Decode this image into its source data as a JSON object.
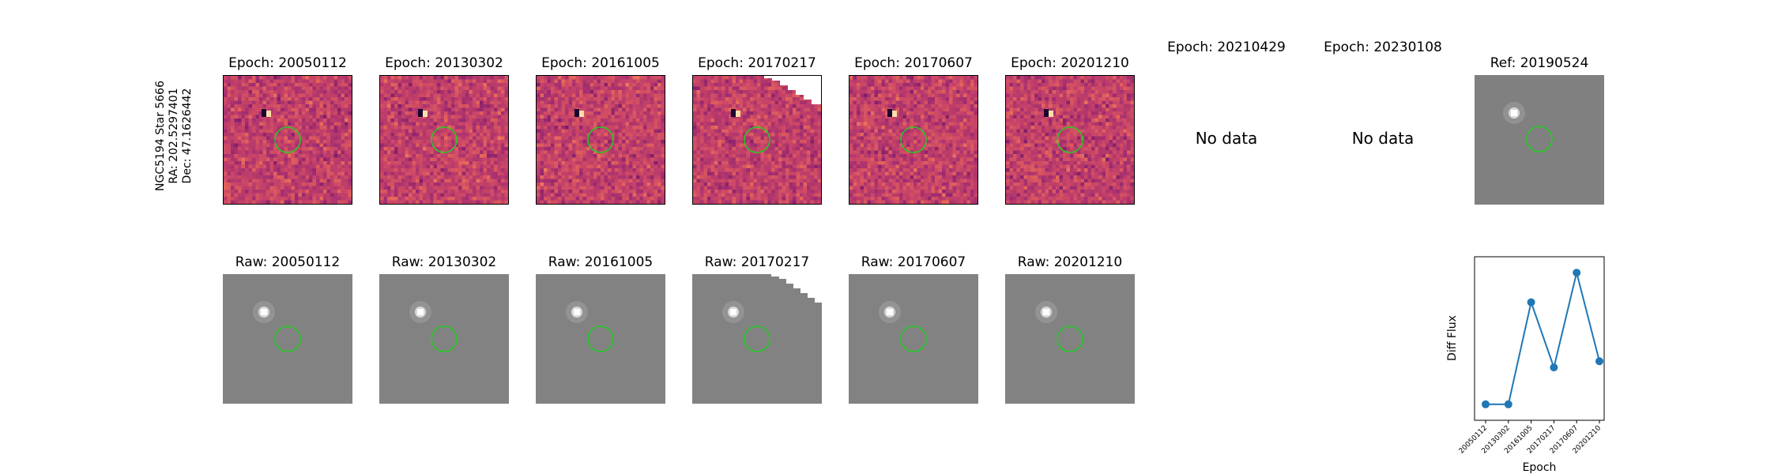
{
  "target": {
    "name": "NGC5194 Star 5666",
    "ra_label": "RA: 202.5297401",
    "dec_label": "Dec: 47.1626442"
  },
  "diff_row": [
    {
      "title": "Epoch: 20050112",
      "has_data": true,
      "clipped": false
    },
    {
      "title": "Epoch: 20130302",
      "has_data": true,
      "clipped": false
    },
    {
      "title": "Epoch: 20161005",
      "has_data": true,
      "clipped": false
    },
    {
      "title": "Epoch: 20170217",
      "has_data": true,
      "clipped": true
    },
    {
      "title": "Epoch: 20170607",
      "has_data": true,
      "clipped": false
    },
    {
      "title": "Epoch: 20201210",
      "has_data": true,
      "clipped": false
    },
    {
      "title": "Epoch: 20210429",
      "has_data": false,
      "message": "No data"
    },
    {
      "title": "Epoch: 20230108",
      "has_data": false,
      "message": "No data"
    }
  ],
  "reference": {
    "title": "Ref: 20190524"
  },
  "raw_row": [
    {
      "title": "Raw: 20050112",
      "clipped": false
    },
    {
      "title": "Raw: 20130302",
      "clipped": false
    },
    {
      "title": "Raw: 20161005",
      "clipped": false
    },
    {
      "title": "Raw: 20170217",
      "clipped": true
    },
    {
      "title": "Raw: 20170607",
      "clipped": false
    },
    {
      "title": "Raw: 20201210",
      "clipped": false
    }
  ],
  "colors": {
    "aperture": "#22cc22",
    "line": "#1f77b4",
    "diff_base": "#b84c7a"
  },
  "chart_data": {
    "type": "line",
    "title": "",
    "xlabel": "Epoch",
    "ylabel": "Diff Flux",
    "categories": [
      "20050112",
      "20130302",
      "20161005",
      "20170217",
      "20170607",
      "20201210"
    ],
    "values": [
      0.5,
      0.5,
      8.8,
      3.5,
      11.2,
      4.0
    ],
    "ylim": [
      -0.8,
      12.5
    ],
    "yticks_shown": false,
    "grid": false
  }
}
